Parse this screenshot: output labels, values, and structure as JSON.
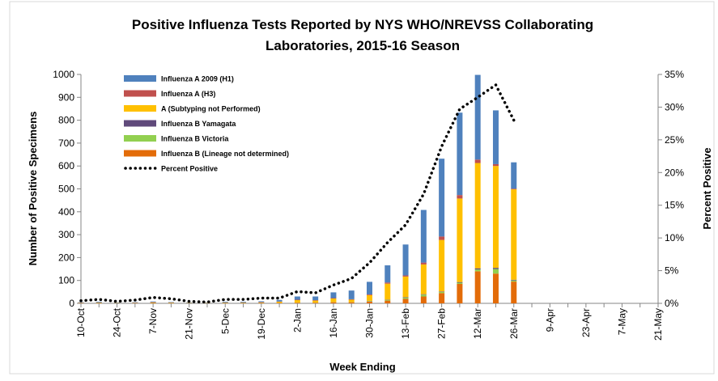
{
  "chart_data": {
    "type": "bar",
    "title": [
      "Positive Influenza Tests Reported by NYS WHO/NREVSS Collaborating",
      "Laboratories, 2015-16 Season"
    ],
    "x_label": "Week Ending",
    "y_label": "Number of Positive Specimens",
    "y2_label": "Percent Positive",
    "categories": [
      "10-Oct",
      null,
      "24-Oct",
      null,
      "7-Nov",
      null,
      "21-Nov",
      null,
      "5-Dec",
      null,
      "19-Dec",
      null,
      "2-Jan",
      null,
      "16-Jan",
      null,
      "30-Jan",
      null,
      "13-Feb",
      null,
      "27-Feb",
      null,
      "12-Mar",
      null,
      "26-Mar",
      null,
      "9-Apr",
      null,
      "23-Apr",
      null,
      "7-May",
      null,
      "21-May"
    ],
    "ylim": [
      0,
      1000
    ],
    "yticks": [
      0,
      100,
      200,
      300,
      400,
      500,
      600,
      700,
      800,
      900,
      1000
    ],
    "y2lim": [
      0,
      35
    ],
    "y2ticks": [
      {
        "value": 0,
        "label": "0%"
      },
      {
        "value": 5,
        "label": "5%"
      },
      {
        "value": 10,
        "label": "10%"
      },
      {
        "value": 15,
        "label": "15%"
      },
      {
        "value": 20,
        "label": "20%"
      },
      {
        "value": 25,
        "label": "25%"
      },
      {
        "value": 30,
        "label": "30%"
      },
      {
        "value": 35,
        "label": "35%"
      }
    ],
    "stacked": true,
    "series": [
      {
        "name": "Influenza A  2009 (H1)",
        "color": "#4f81bd",
        "values": [
          2,
          3,
          2,
          2,
          3,
          2,
          2,
          2,
          3,
          3,
          4,
          7,
          14,
          16,
          25,
          38,
          55,
          75,
          135,
          230,
          340,
          360,
          370,
          235,
          115,
          null,
          null,
          null,
          null,
          null,
          null,
          null,
          null
        ]
      },
      {
        "name": "Influenza A (H3)",
        "color": "#c0504d",
        "values": [
          1,
          1,
          0,
          1,
          1,
          1,
          0,
          0,
          1,
          1,
          1,
          1,
          2,
          2,
          2,
          2,
          3,
          5,
          5,
          8,
          15,
          15,
          15,
          8,
          3,
          null,
          null,
          null,
          null,
          null,
          null,
          null,
          null
        ]
      },
      {
        "name": "A (Subtyping not Performed)",
        "color": "#ffc000",
        "values": [
          1,
          2,
          1,
          1,
          2,
          2,
          1,
          1,
          2,
          2,
          2,
          5,
          10,
          8,
          15,
          10,
          25,
          70,
          90,
          130,
          225,
          365,
          460,
          445,
          395,
          null,
          null,
          null,
          null,
          null,
          null,
          null,
          null
        ]
      },
      {
        "name": "Influenza B Yamagata",
        "color": "#604a7b",
        "values": [
          0,
          0,
          0,
          0,
          0,
          0,
          0,
          0,
          0,
          0,
          0,
          0,
          0,
          0,
          0,
          0,
          1,
          1,
          2,
          2,
          2,
          3,
          5,
          5,
          3,
          null,
          null,
          null,
          null,
          null,
          null,
          null,
          null
        ]
      },
      {
        "name": "Influenza B Victoria",
        "color": "#92d050",
        "values": [
          0,
          0,
          0,
          0,
          0,
          0,
          0,
          0,
          0,
          0,
          0,
          0,
          1,
          1,
          1,
          1,
          2,
          3,
          5,
          8,
          5,
          5,
          8,
          20,
          5,
          null,
          null,
          null,
          null,
          null,
          null,
          null,
          null
        ]
      },
      {
        "name": "Influenza B (Lineage not determined)",
        "color": "#e36c09",
        "values": [
          1,
          1,
          1,
          1,
          2,
          1,
          1,
          1,
          1,
          1,
          2,
          2,
          3,
          3,
          5,
          5,
          8,
          12,
          20,
          30,
          45,
          85,
          140,
          130,
          95,
          null,
          null,
          null,
          null,
          null,
          null,
          null,
          null
        ]
      },
      {
        "name": "Percent Positive",
        "type": "line",
        "axis": "y2",
        "color": "#000000",
        "style": "dotted",
        "values": [
          0.4,
          0.6,
          0.3,
          0.5,
          0.9,
          0.7,
          0.3,
          0.2,
          0.6,
          0.6,
          0.8,
          0.8,
          1.8,
          1.6,
          2.8,
          3.8,
          6.2,
          9.3,
          12,
          16.7,
          24,
          29.7,
          31.5,
          33.4,
          28,
          null,
          null,
          null,
          null,
          null,
          null,
          null,
          null
        ]
      }
    ]
  }
}
